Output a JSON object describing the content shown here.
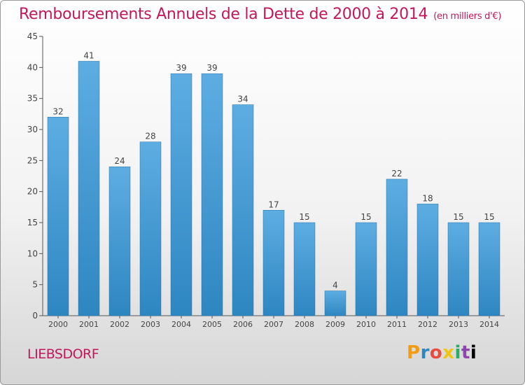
{
  "title": "Remboursements Annuels de la Dette de 2000 à 2014",
  "unit": "(en milliers d'€)",
  "city": "LIEBSDORF",
  "logo": "Proxiti",
  "colors": {
    "bar_light": "#5dade2",
    "bar_dark": "#2e86c1",
    "title": "#c2185b"
  },
  "chart_data": {
    "type": "bar",
    "categories": [
      "2000",
      "2001",
      "2002",
      "2003",
      "2004",
      "2005",
      "2006",
      "2007",
      "2008",
      "2009",
      "2010",
      "2011",
      "2012",
      "2013",
      "2014"
    ],
    "values": [
      32,
      41,
      24,
      28,
      39,
      39,
      34,
      17,
      15,
      4,
      15,
      22,
      18,
      15,
      15
    ],
    "ylim": [
      0,
      45
    ],
    "yticks": [
      0,
      5,
      10,
      15,
      20,
      25,
      30,
      35,
      40,
      45
    ],
    "grid": false,
    "xlabel": "",
    "ylabel": ""
  }
}
